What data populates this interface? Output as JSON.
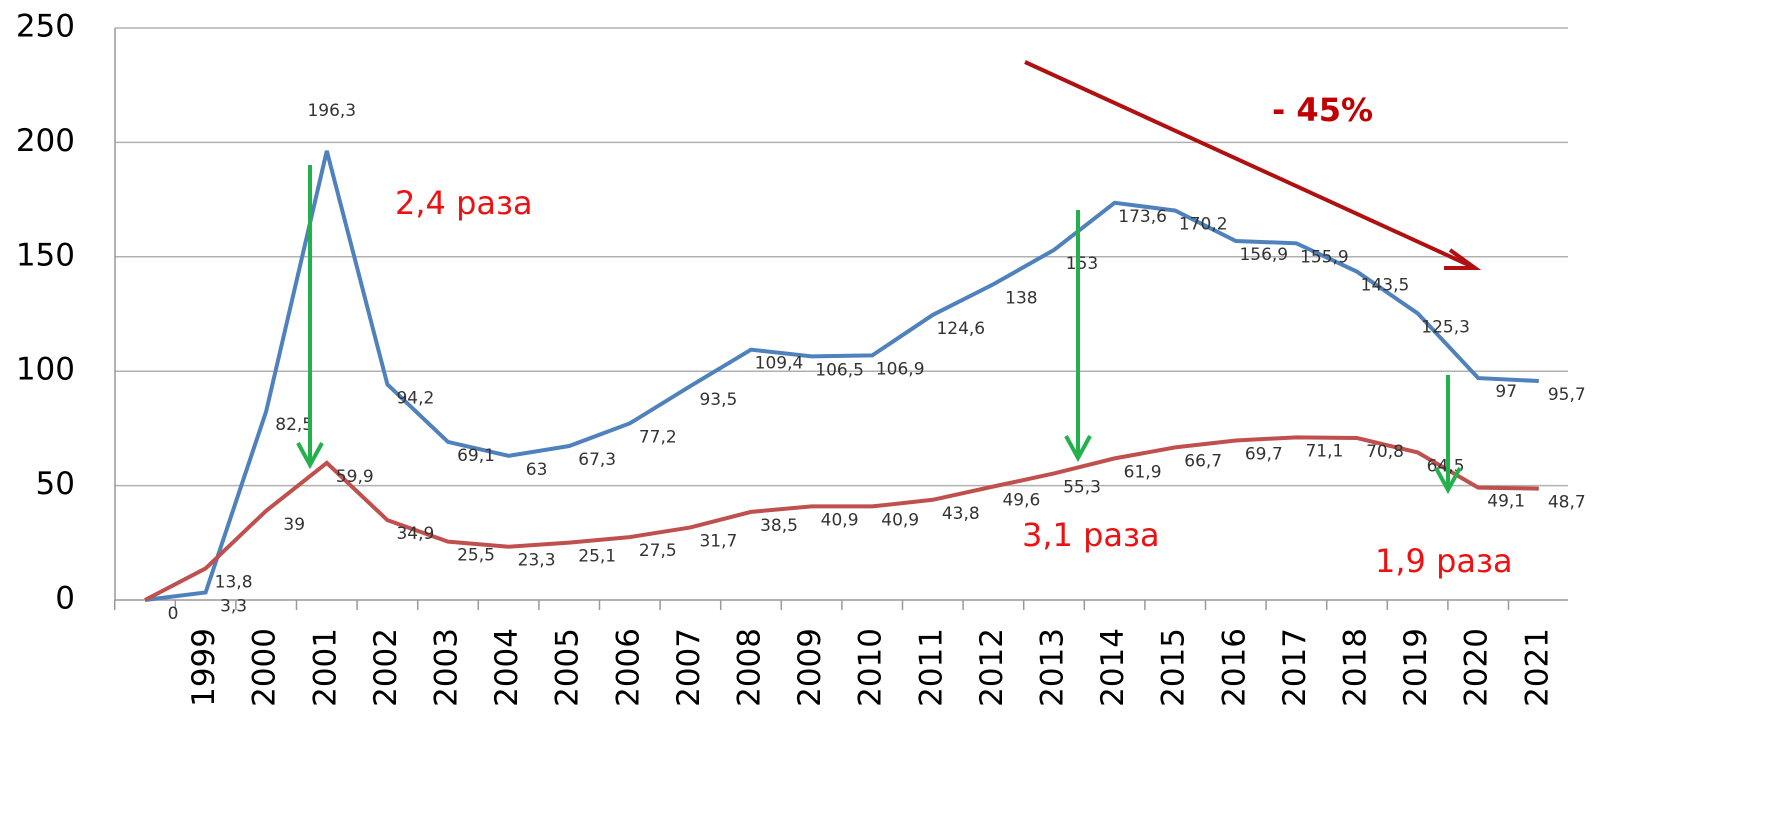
{
  "chart_data": {
    "type": "line",
    "categories": [
      null,
      "1999",
      "2000",
      "2001",
      "2002",
      "2003",
      "2004",
      "2005",
      "2006",
      "2007",
      "2008",
      "2009",
      "2010",
      "2011",
      "2012",
      "2013",
      "2014",
      "2015",
      "2016",
      "2017",
      "2018",
      "2019",
      "2020",
      "2021"
    ],
    "series": [
      {
        "color": "#4f81bd",
        "values": [
          0,
          3.3,
          82.5,
          196.3,
          94.2,
          69.1,
          63,
          67.3,
          77.2,
          93.5,
          109.4,
          106.5,
          106.9,
          124.6,
          138,
          153,
          173.6,
          170.2,
          156.9,
          155.9,
          143.5,
          125.3,
          97,
          95.7
        ],
        "value_labels": [
          "0",
          "3,3",
          "82,5",
          "196,3",
          "94,2",
          "69,1",
          "63",
          "67,3",
          "77,2",
          "93,5",
          "109,4",
          "106,5",
          "106,9",
          "124,6",
          "138",
          "153",
          "173,6",
          "170,2",
          "156,9",
          "155,9",
          "143,5",
          "125,3",
          "97",
          "95,7"
        ]
      },
      {
        "color": "#c0504d",
        "values": [
          0,
          13.8,
          39,
          59.9,
          34.9,
          25.5,
          23.3,
          25.1,
          27.5,
          31.7,
          38.5,
          40.9,
          40.9,
          43.8,
          49.6,
          55.3,
          61.9,
          66.7,
          69.7,
          71.1,
          70.8,
          64.5,
          49.1,
          48.7
        ],
        "value_labels": [
          null,
          "13,8",
          "39",
          "59,9",
          "34,9",
          "25,5",
          "23,3",
          "25,1",
          "27,5",
          "31,7",
          "38,5",
          "40,9",
          "40,9",
          "43,8",
          "49,6",
          "55,3",
          "61,9",
          "66,7",
          "69,7",
          "71,1",
          "70,8",
          "64,5",
          "49,1",
          "48,7"
        ]
      }
    ],
    "ylim": [
      0,
      250
    ],
    "yticks": [
      0,
      50,
      100,
      150,
      200,
      250
    ],
    "grid": true,
    "annotations": [
      "2,4 раза",
      "3,1 раза",
      "1,9 раза",
      "- 45%"
    ]
  }
}
